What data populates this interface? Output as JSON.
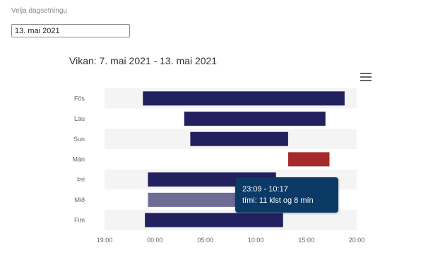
{
  "date_picker": {
    "label": "Velja dagsetningu",
    "value": "13. mai 2021"
  },
  "chart_data": {
    "type": "bar",
    "orientation": "horizontal",
    "title": "Vikan: 7. mai 2021 - 13. mai 2021",
    "categories": [
      "Fim",
      "Mið",
      "Þri",
      "Mán",
      "Sun",
      "Lau",
      "Fös"
    ],
    "category_display": [
      "Fim",
      "Mið",
      "Þri",
      "Mán",
      "Sun",
      "Lau",
      "Fös"
    ],
    "x_ticks": [
      "19:00",
      "00:00",
      "05:00",
      "10:00",
      "15:00",
      "20:00"
    ],
    "x_range_hours_from_19": [
      0,
      25
    ],
    "series": [
      {
        "bars": [
          {
            "category": "Fim",
            "start": 4.0,
            "end": 17.7,
            "color": "#22205e"
          },
          {
            "category": "Mið",
            "start": 4.3,
            "end": 16.2,
            "color": "#6f6d97"
          },
          {
            "category": "Þri",
            "start": 4.3,
            "end": 17.0,
            "color": "#22205e"
          },
          {
            "category": "Mán",
            "start": 18.2,
            "end": 22.3,
            "color": "#a52a2a"
          },
          {
            "category": "Sun",
            "start": 8.5,
            "end": 18.2,
            "color": "#22205e"
          },
          {
            "category": "Lau",
            "start": 7.9,
            "end": 21.9,
            "color": "#22205e"
          },
          {
            "category": "Fös",
            "start": 3.8,
            "end": 23.8,
            "color": "#22205e"
          }
        ]
      }
    ],
    "tooltip": {
      "line1": "23:09 - 10:17",
      "line2": "tími: 11 klst og 8 mín"
    },
    "grid": "alternating-row-bands"
  }
}
